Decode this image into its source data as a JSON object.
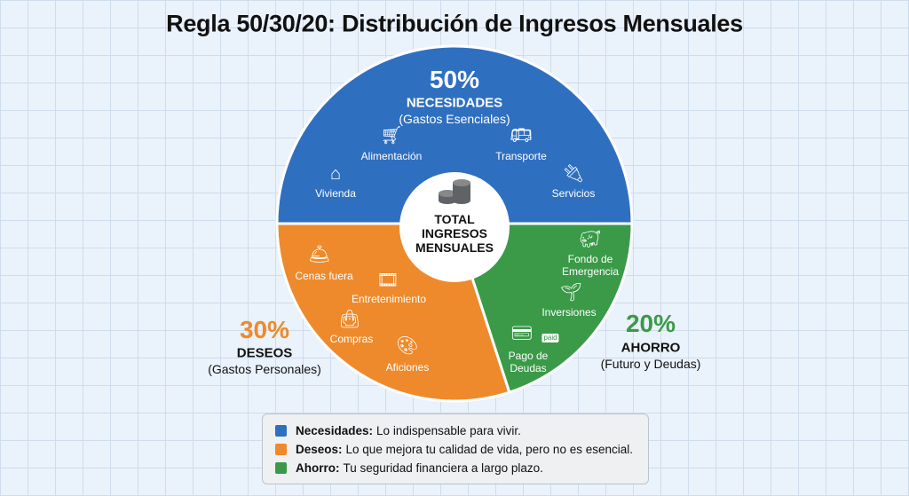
{
  "title": "Regla 50/30/20: Distribución de Ingresos Mensuales",
  "chart_data": {
    "type": "pie",
    "title": "Regla 50/30/20: Distribución de Ingresos Mensuales",
    "center_label": [
      "TOTAL",
      "INGRESOS",
      "MENSUALES"
    ],
    "slices": [
      {
        "label": "NECESIDADES",
        "value": 50,
        "percent_label": "50%",
        "subtitle": "(Gastos Esenciales)",
        "color": "#2f6fc0",
        "items": [
          {
            "label": "Vivienda",
            "icon": "house-icon"
          },
          {
            "label": "Alimentación",
            "icon": "shopping-cart-icon"
          },
          {
            "label": "Transporte",
            "icon": "bus-icon"
          },
          {
            "label": "Servicios",
            "icon": "utilities-plug-icon"
          }
        ]
      },
      {
        "label": "AHORRO",
        "value": 20,
        "percent_label": "20%",
        "subtitle": "(Futuro y Deudas)",
        "color": "#3a9a48",
        "items": [
          {
            "label": "Fondo de Emergencia",
            "icon": "piggy-bank-icon"
          },
          {
            "label": "Inversiones",
            "icon": "plant-hand-icon"
          },
          {
            "label": "Pago de Deudas",
            "icon": "credit-card-paid-icon",
            "badge": "paid"
          }
        ]
      },
      {
        "label": "DESEOS",
        "value": 30,
        "percent_label": "30%",
        "subtitle": "(Gastos Personales)",
        "color": "#ee8a2c",
        "items": [
          {
            "label": "Cenas fuera",
            "icon": "serving-cloche-icon"
          },
          {
            "label": "Entretenimiento",
            "icon": "movie-ticket-icon"
          },
          {
            "label": "Compras",
            "icon": "shopping-bag-icon"
          },
          {
            "label": "Aficiones",
            "icon": "hobbies-palette-icon"
          }
        ]
      }
    ]
  },
  "legend": [
    {
      "name": "Necesidades:",
      "text": "Lo indispensable para vivir.",
      "color": "#2f6fc0"
    },
    {
      "name": "Deseos:",
      "text": "Lo que mejora tu calidad de vida, pero no es esencial.",
      "color": "#ee8a2c"
    },
    {
      "name": "Ahorro:",
      "text": "Tu seguridad financiera a largo plazo.",
      "color": "#3a9a48"
    }
  ]
}
